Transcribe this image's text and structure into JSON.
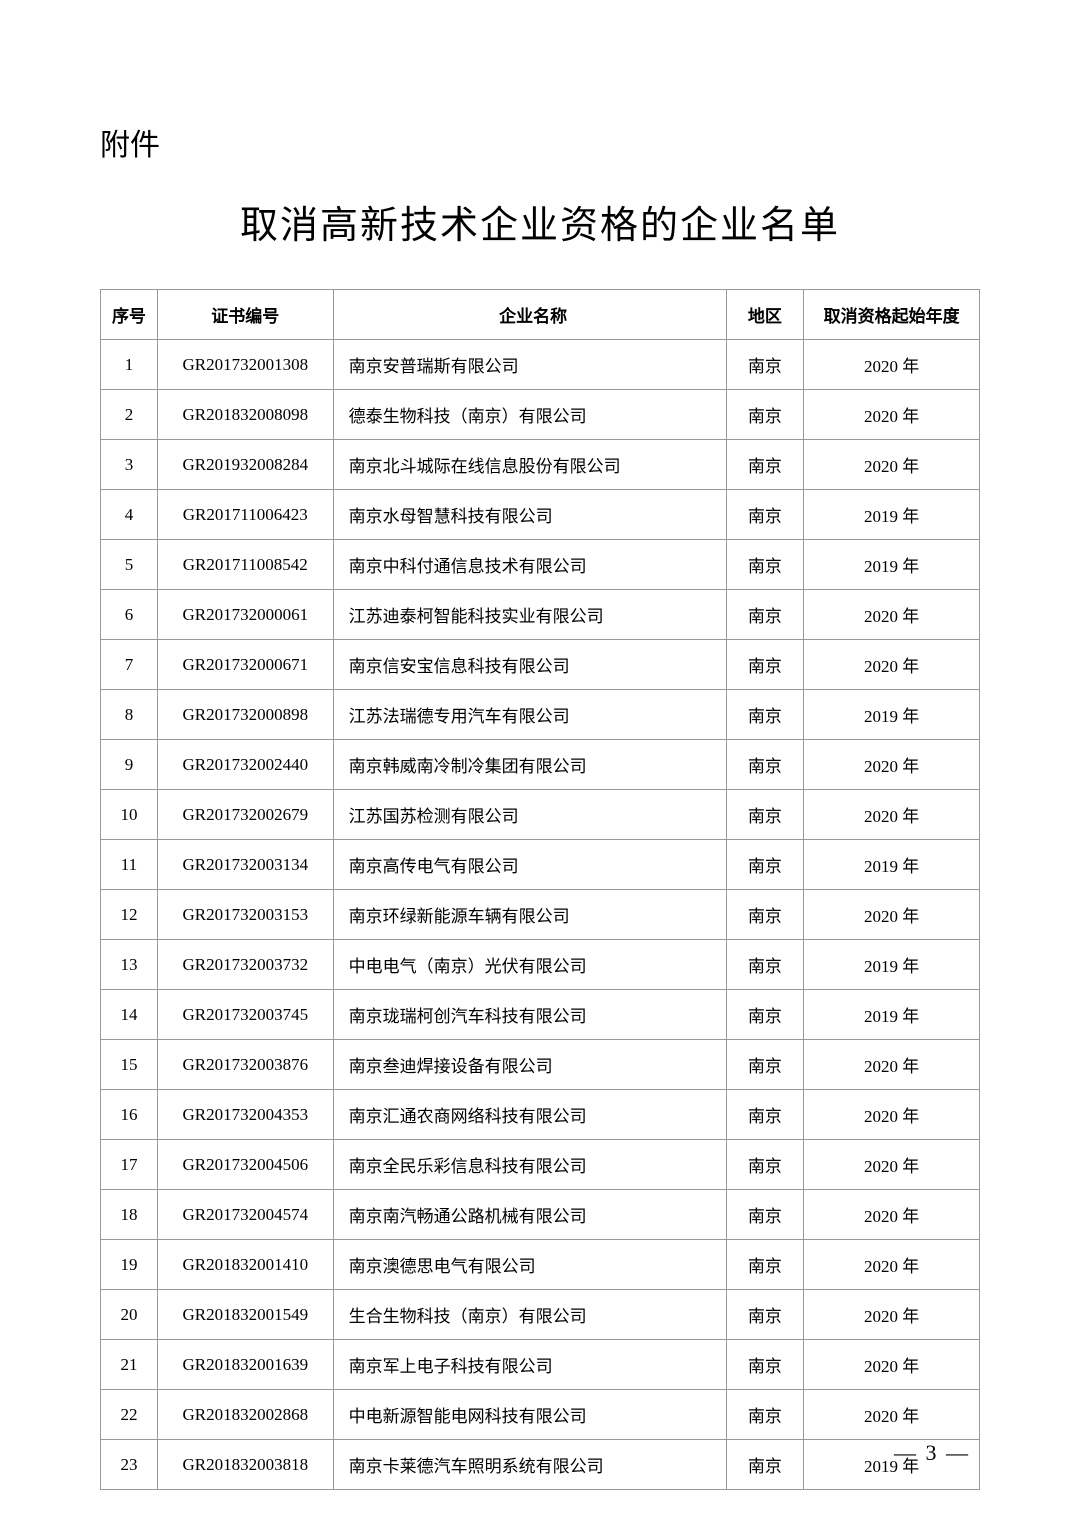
{
  "attachment_label": "附件",
  "title": "取消高新技术企业资格的企业名单",
  "table": {
    "columns": [
      "序号",
      "证书编号",
      "企业名称",
      "地区",
      "取消资格起始年度"
    ],
    "rows": [
      [
        "1",
        "GR201732001308",
        "南京安普瑞斯有限公司",
        "南京",
        "2020 年"
      ],
      [
        "2",
        "GR201832008098",
        "德泰生物科技（南京）有限公司",
        "南京",
        "2020 年"
      ],
      [
        "3",
        "GR201932008284",
        "南京北斗城际在线信息股份有限公司",
        "南京",
        "2020 年"
      ],
      [
        "4",
        "GR201711006423",
        "南京水母智慧科技有限公司",
        "南京",
        "2019 年"
      ],
      [
        "5",
        "GR201711008542",
        "南京中科付通信息技术有限公司",
        "南京",
        "2019 年"
      ],
      [
        "6",
        "GR201732000061",
        "江苏迪泰柯智能科技实业有限公司",
        "南京",
        "2020 年"
      ],
      [
        "7",
        "GR201732000671",
        "南京信安宝信息科技有限公司",
        "南京",
        "2020 年"
      ],
      [
        "8",
        "GR201732000898",
        "江苏法瑞德专用汽车有限公司",
        "南京",
        "2019 年"
      ],
      [
        "9",
        "GR201732002440",
        "南京韩威南冷制冷集团有限公司",
        "南京",
        "2020 年"
      ],
      [
        "10",
        "GR201732002679",
        "江苏国苏检测有限公司",
        "南京",
        "2020 年"
      ],
      [
        "11",
        "GR201732003134",
        "南京高传电气有限公司",
        "南京",
        "2019 年"
      ],
      [
        "12",
        "GR201732003153",
        "南京环绿新能源车辆有限公司",
        "南京",
        "2020 年"
      ],
      [
        "13",
        "GR201732003732",
        "中电电气（南京）光伏有限公司",
        "南京",
        "2019 年"
      ],
      [
        "14",
        "GR201732003745",
        "南京珑瑞柯创汽车科技有限公司",
        "南京",
        "2019 年"
      ],
      [
        "15",
        "GR201732003876",
        "南京叁迪焊接设备有限公司",
        "南京",
        "2020 年"
      ],
      [
        "16",
        "GR201732004353",
        "南京汇通农商网络科技有限公司",
        "南京",
        "2020 年"
      ],
      [
        "17",
        "GR201732004506",
        "南京全民乐彩信息科技有限公司",
        "南京",
        "2020 年"
      ],
      [
        "18",
        "GR201732004574",
        "南京南汽畅通公路机械有限公司",
        "南京",
        "2020 年"
      ],
      [
        "19",
        "GR201832001410",
        "南京澳德思电气有限公司",
        "南京",
        "2020 年"
      ],
      [
        "20",
        "GR201832001549",
        "生合生物科技（南京）有限公司",
        "南京",
        "2020 年"
      ],
      [
        "21",
        "GR201832001639",
        "南京军上电子科技有限公司",
        "南京",
        "2020 年"
      ],
      [
        "22",
        "GR201832002868",
        "中电新源智能电网科技有限公司",
        "南京",
        "2020 年"
      ],
      [
        "23",
        "GR201832003818",
        "南京卡莱德汽车照明系统有限公司",
        "南京",
        "2019 年"
      ]
    ]
  },
  "page_number": "— 3 —"
}
